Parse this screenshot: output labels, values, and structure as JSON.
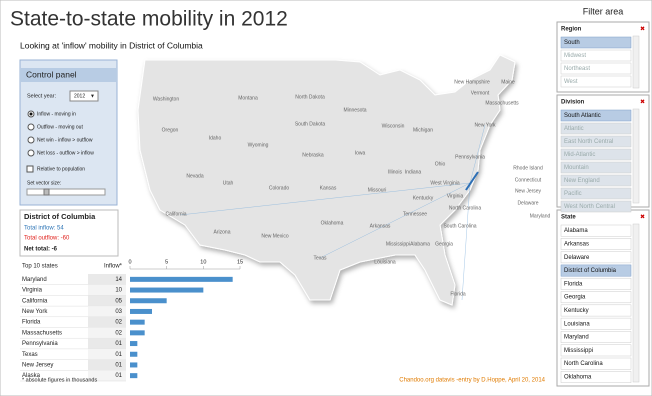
{
  "header": {
    "title": "State-to-state mobility in 2012",
    "subtitle": "Looking at 'inflow' mobility in District of Columbia"
  },
  "control_panel": {
    "title": "Control panel",
    "year_label": "Select year:",
    "year": "2012",
    "options": [
      "Inflow - moving in",
      "Outflow - moving out",
      "Net win - inflow > outflow",
      "Net loss - outflow > inflow"
    ],
    "checked_option": 0,
    "checkbox": "Relative to population",
    "vector_label": "Set vector size:"
  },
  "summary": {
    "state": "District of Columbia",
    "inflow": "Total inflow: 54",
    "outflow": "Total outflow: -60",
    "net": "Net total: -6"
  },
  "chart_data": {
    "type": "bar",
    "title": "Top 10 states",
    "value_header": "Inflow*",
    "categories": [
      "Maryland",
      "Virginia",
      "California",
      "New York",
      "Florida",
      "Massachusetts",
      "Pennsylvania",
      "Texas",
      "New Jersey",
      "Alaska"
    ],
    "values": [
      14,
      10,
      5,
      3,
      2,
      2,
      1,
      1,
      1,
      1
    ],
    "value_labels": [
      "14",
      "10",
      "05",
      "03",
      "02",
      "02",
      "01",
      "01",
      "01",
      "01"
    ],
    "xlim": [
      0,
      15
    ],
    "xticks": [
      0,
      5,
      10,
      15
    ],
    "color": "#4a90cc"
  },
  "footnote": "* absolute figures in thousands",
  "credit": "Chandoo.org datavis -entry by D.Hoppe, April 20, 2014",
  "map": {
    "labels": [
      "Washington",
      "Oregon",
      "California",
      "Nevada",
      "Idaho",
      "Montana",
      "Wyoming",
      "Utah",
      "Arizona",
      "Colorado",
      "New Mexico",
      "North Dakota",
      "South Dakota",
      "Nebraska",
      "Kansas",
      "Oklahoma",
      "Texas",
      "Minnesota",
      "Iowa",
      "Missouri",
      "Arkansas",
      "Louisiana",
      "Wisconsin",
      "Illinois",
      "Michigan",
      "Indiana",
      "Ohio",
      "Kentucky",
      "Tennessee",
      "Mississippi",
      "Alabama",
      "Georgia",
      "Florida",
      "South Carolina",
      "North Carolina",
      "Virginia",
      "West Virginia",
      "Pennsylvania",
      "New York",
      "Maine",
      "New Hampshire",
      "Vermont",
      "Massachusetts",
      "Rhode Island",
      "Connecticut",
      "New Jersey",
      "Delaware",
      "Maryland"
    ]
  },
  "filter_area": {
    "title": "Filter area",
    "slicers": [
      {
        "title": "Region",
        "selected": 0,
        "items": [
          "South",
          "Midwest",
          "Northeast",
          "West"
        ]
      },
      {
        "title": "Division",
        "selected": 0,
        "items": [
          "South Atlantic",
          "Atlantic",
          "East North Central",
          "Mid-Atlantic",
          "Mountain",
          "New England",
          "Pacific",
          "West North Central"
        ]
      },
      {
        "title": "State",
        "selected": 3,
        "items": [
          "Alabama",
          "Arkansas",
          "Delaware",
          "District of Columbia",
          "Florida",
          "Georgia",
          "Kentucky",
          "Louisiana",
          "Maryland",
          "Mississippi",
          "North Carolina",
          "Oklahoma"
        ]
      }
    ]
  }
}
